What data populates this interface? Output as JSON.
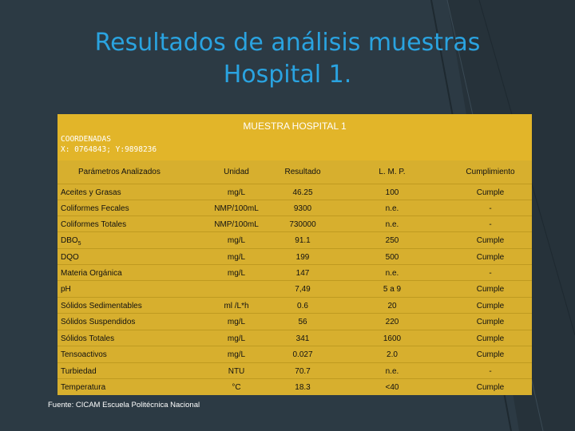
{
  "title": {
    "line1": "Resultados de análisis muestras",
    "line2": "Hospital 1."
  },
  "sample": {
    "heading": "MUESTRA HOSPITAL 1",
    "coords_label": "COORDENADAS",
    "coords_value": "X: 0764843; Y:9898236"
  },
  "columns": [
    "Parámetros Analizados",
    "Unidad",
    "Resultado",
    "L. M. P.",
    "Cumplimiento"
  ],
  "rows": [
    [
      "Aceites y Grasas",
      "mg/L",
      "46.25",
      "100",
      "Cumple"
    ],
    [
      "Coliformes Fecales",
      "NMP/100mL",
      "9300",
      "n.e.",
      "-"
    ],
    [
      "Coliformes Totales",
      "NMP/100mL",
      "730000",
      "n.e.",
      "-"
    ],
    [
      "DBO",
      "mg/L",
      "91.1",
      "250",
      "Cumple"
    ],
    [
      "DQO",
      "mg/L",
      "199",
      "500",
      "Cumple"
    ],
    [
      "Materia Orgánica",
      "mg/L",
      "147",
      "n.e.",
      "-"
    ],
    [
      "pH",
      "",
      "7,49",
      "5 a 9",
      "Cumple"
    ],
    [
      "Sólidos Sedimentables",
      "ml /L*h",
      "0.6",
      "20",
      "Cumple"
    ],
    [
      "Sólidos Suspendidos",
      "mg/L",
      "56",
      "220",
      "Cumple"
    ],
    [
      "Sólidos Totales",
      "mg/L",
      "341",
      "1600",
      "Cumple"
    ],
    [
      "Tensoactivos",
      "mg/L",
      "0.027",
      "2.0",
      "Cumple"
    ],
    [
      "Turbiedad",
      "NTU",
      "70.7",
      "n.e.",
      "-"
    ],
    [
      "Temperatura",
      "°C",
      "18.3",
      "<40",
      "Cumple"
    ]
  ],
  "dbo_subscript": "5",
  "source": "Fuente: CICAM Escuela Politécnica Nacional"
}
